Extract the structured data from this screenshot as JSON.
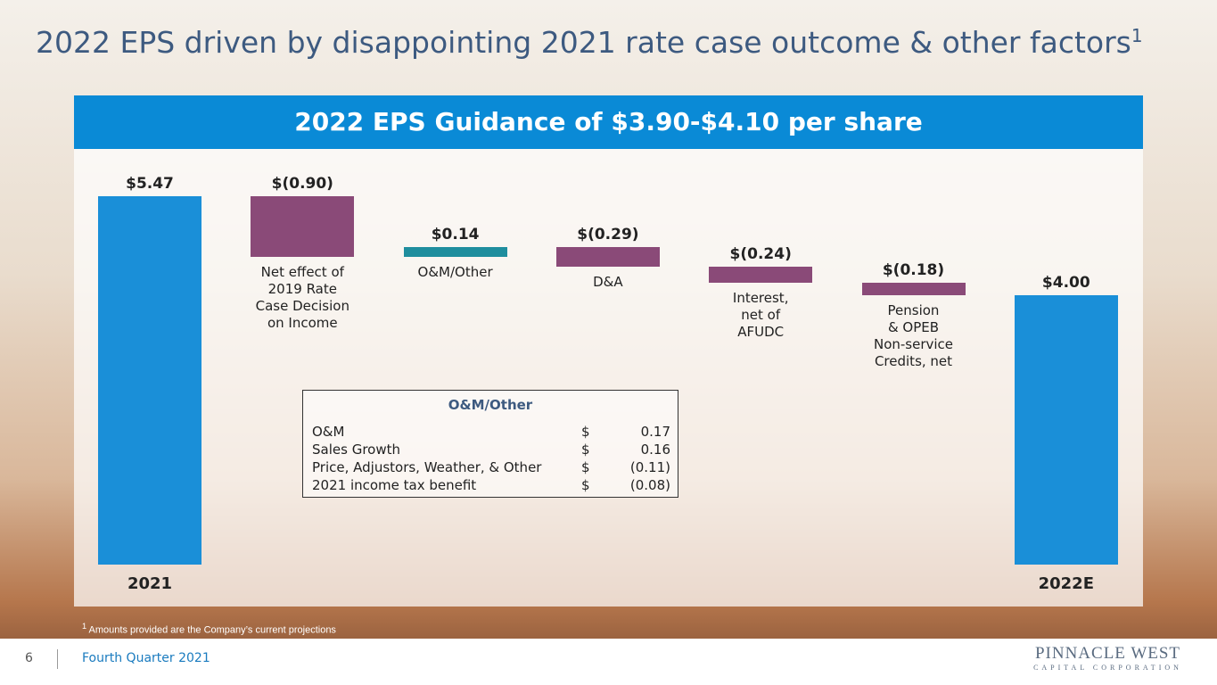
{
  "header": {
    "title": "2022 EPS driven by disappointing 2021 rate case outcome & other factors",
    "superscript": "1"
  },
  "chart_data": {
    "type": "waterfall",
    "title": "2022 EPS Guidance of $3.90-$4.10 per share",
    "categories": [
      "2021",
      "Net effect of\n2019 Rate\nCase Decision\non Income",
      "O&M/Other",
      "D&A",
      "Interest,\nnet of\nAFUDC",
      "Pension\n& OPEB\nNon-service\nCredits, net",
      "2022E"
    ],
    "values": [
      5.47,
      -0.9,
      0.14,
      -0.29,
      -0.24,
      -0.18,
      4.0
    ],
    "value_labels": [
      "$5.47",
      "$(0.90)",
      "$0.14",
      "$(0.29)",
      "$(0.24)",
      "$(0.18)",
      "$4.00"
    ],
    "measure": [
      "absolute",
      "relative",
      "relative",
      "relative",
      "relative",
      "relative",
      "total"
    ],
    "colors": [
      "#1a8fd8",
      "#8a4a78",
      "#1f8e9e",
      "#8a4a78",
      "#8a4a78",
      "#8a4a78",
      "#1a8fd8"
    ]
  },
  "table": {
    "title": "O&M/Other",
    "rows": [
      [
        "O&M",
        "$",
        "0.17"
      ],
      [
        "Sales Growth",
        "$",
        "0.16"
      ],
      [
        "Price, Adjustors, Weather, & Other",
        "$",
        "(0.11)"
      ],
      [
        "2021 income tax benefit",
        "$",
        "(0.08)"
      ]
    ]
  },
  "footnote": {
    "marker": "1",
    "text": "Amounts provided are the Company’s current projections"
  },
  "footer": {
    "page": "6",
    "subtitle": "Fourth Quarter 2021",
    "logo": "PINNACLE WEST",
    "logo_sub": "CAPITAL CORPORATION"
  }
}
